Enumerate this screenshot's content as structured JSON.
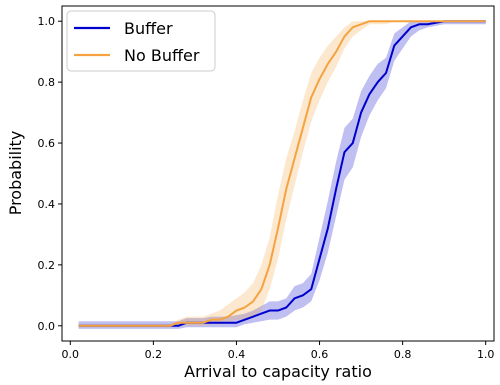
{
  "chart_data": {
    "type": "line",
    "xlabel": "Arrival to capacity ratio",
    "ylabel": "Probability",
    "xlim": [
      -0.02,
      1.02
    ],
    "ylim": [
      -0.05,
      1.05
    ],
    "x_ticks": [
      0.0,
      0.2,
      0.4,
      0.6,
      0.8,
      1.0
    ],
    "y_ticks": [
      0.0,
      0.2,
      0.4,
      0.6,
      0.8,
      1.0
    ],
    "x_tick_labels": [
      "0.0",
      "0.2",
      "0.4",
      "0.6",
      "0.8",
      "1.0"
    ],
    "y_tick_labels": [
      "0.0",
      "0.2",
      "0.4",
      "0.6",
      "0.8",
      "1.0"
    ],
    "grid": false,
    "legend_position": "top-left",
    "series": [
      {
        "name": "Buffer",
        "color": "#0000cc",
        "x": [
          0.02,
          0.05,
          0.1,
          0.15,
          0.2,
          0.24,
          0.26,
          0.28,
          0.3,
          0.32,
          0.34,
          0.36,
          0.38,
          0.4,
          0.42,
          0.44,
          0.46,
          0.48,
          0.5,
          0.52,
          0.54,
          0.56,
          0.58,
          0.6,
          0.62,
          0.64,
          0.66,
          0.68,
          0.7,
          0.72,
          0.74,
          0.76,
          0.78,
          0.8,
          0.82,
          0.84,
          0.86,
          0.9,
          0.95,
          1.0
        ],
        "y": [
          0.0,
          0.0,
          0.0,
          0.0,
          0.0,
          0.0,
          0.0,
          0.01,
          0.01,
          0.01,
          0.01,
          0.01,
          0.01,
          0.01,
          0.02,
          0.03,
          0.04,
          0.05,
          0.05,
          0.06,
          0.09,
          0.1,
          0.12,
          0.22,
          0.32,
          0.45,
          0.57,
          0.6,
          0.7,
          0.76,
          0.8,
          0.83,
          0.92,
          0.95,
          0.98,
          0.99,
          0.99,
          1.0,
          1.0,
          1.0
        ],
        "band_low": [
          -0.01,
          -0.01,
          -0.01,
          -0.01,
          -0.01,
          -0.01,
          -0.01,
          -0.005,
          -0.005,
          -0.005,
          -0.005,
          -0.005,
          -0.005,
          -0.005,
          0.005,
          0.01,
          0.015,
          0.02,
          0.02,
          0.03,
          0.05,
          0.06,
          0.08,
          0.15,
          0.24,
          0.36,
          0.48,
          0.52,
          0.62,
          0.69,
          0.74,
          0.78,
          0.87,
          0.91,
          0.95,
          0.97,
          0.98,
          0.99,
          0.99,
          0.99
        ],
        "band_high": [
          0.015,
          0.015,
          0.015,
          0.015,
          0.015,
          0.015,
          0.015,
          0.025,
          0.025,
          0.025,
          0.03,
          0.03,
          0.03,
          0.035,
          0.04,
          0.05,
          0.065,
          0.08,
          0.08,
          0.09,
          0.13,
          0.14,
          0.17,
          0.29,
          0.41,
          0.54,
          0.65,
          0.68,
          0.77,
          0.82,
          0.86,
          0.88,
          0.96,
          0.98,
          1.0,
          1.0,
          1.0,
          1.0,
          1.0,
          1.0
        ]
      },
      {
        "name": "No Buffer",
        "color": "#f4a340",
        "x": [
          0.02,
          0.05,
          0.1,
          0.15,
          0.2,
          0.24,
          0.26,
          0.28,
          0.3,
          0.32,
          0.34,
          0.36,
          0.38,
          0.4,
          0.42,
          0.44,
          0.46,
          0.48,
          0.5,
          0.52,
          0.54,
          0.56,
          0.58,
          0.6,
          0.62,
          0.64,
          0.66,
          0.68,
          0.7,
          0.72,
          0.74,
          0.76,
          0.78,
          0.8,
          0.85,
          0.9,
          0.95,
          1.0
        ],
        "y": [
          0.0,
          0.0,
          0.0,
          0.0,
          0.0,
          0.0,
          0.01,
          0.01,
          0.01,
          0.01,
          0.02,
          0.02,
          0.03,
          0.05,
          0.06,
          0.08,
          0.12,
          0.2,
          0.32,
          0.45,
          0.55,
          0.65,
          0.75,
          0.81,
          0.86,
          0.9,
          0.95,
          0.98,
          0.99,
          1.0,
          1.0,
          1.0,
          1.0,
          1.0,
          1.0,
          1.0,
          1.0,
          1.0
        ],
        "band_low": [
          -0.005,
          -0.005,
          -0.005,
          -0.005,
          -0.005,
          -0.005,
          0.0,
          0.0,
          0.0,
          0.0,
          0.005,
          0.005,
          0.01,
          0.02,
          0.02,
          0.03,
          0.05,
          0.12,
          0.22,
          0.35,
          0.46,
          0.57,
          0.67,
          0.74,
          0.8,
          0.85,
          0.91,
          0.95,
          0.97,
          0.99,
          0.99,
          0.99,
          1.0,
          1.0,
          1.0,
          1.0,
          1.0,
          1.0
        ],
        "band_high": [
          0.005,
          0.005,
          0.005,
          0.005,
          0.005,
          0.005,
          0.02,
          0.03,
          0.03,
          0.03,
          0.04,
          0.05,
          0.07,
          0.09,
          0.11,
          0.14,
          0.2,
          0.29,
          0.43,
          0.55,
          0.64,
          0.74,
          0.83,
          0.88,
          0.92,
          0.95,
          0.98,
          1.0,
          1.0,
          1.0,
          1.0,
          1.0,
          1.0,
          1.0,
          1.0,
          1.0,
          1.0,
          1.0
        ]
      }
    ]
  }
}
